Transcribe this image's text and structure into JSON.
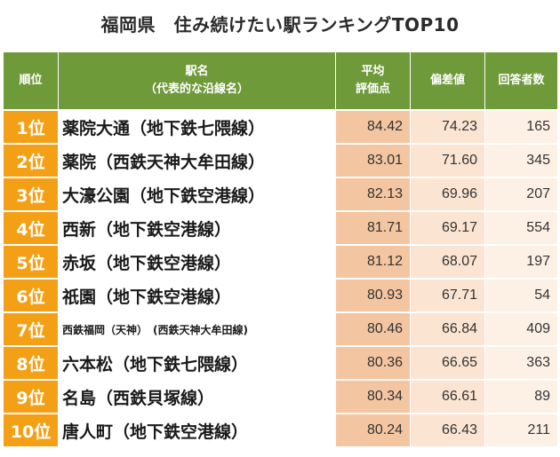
{
  "title": "福岡県　住み続けたい駅ランキングTOP10",
  "headers": {
    "rank": "順位",
    "station_line1": "駅名",
    "station_line2": "（代表的な沿線名）",
    "avg_line1": "平均",
    "avg_line2": "評価点",
    "deviation": "偏差値",
    "respondents": "回答者数"
  },
  "rows": [
    {
      "rank": "1位",
      "station": "薬院大通（地下鉄七隈線）",
      "avg": "84.42",
      "deviation": "74.23",
      "respondents": "165"
    },
    {
      "rank": "2位",
      "station": "薬院（西鉄天神大牟田線）",
      "avg": "83.01",
      "deviation": "71.60",
      "respondents": "345"
    },
    {
      "rank": "3位",
      "station": "大濠公園（地下鉄空港線）",
      "avg": "82.13",
      "deviation": "69.96",
      "respondents": "207"
    },
    {
      "rank": "4位",
      "station": "西新（地下鉄空港線）",
      "avg": "81.71",
      "deviation": "69.17",
      "respondents": "554"
    },
    {
      "rank": "5位",
      "station": "赤坂（地下鉄空港線）",
      "avg": "81.12",
      "deviation": "68.07",
      "respondents": "197"
    },
    {
      "rank": "6位",
      "station": "祇園（地下鉄空港線）",
      "avg": "80.93",
      "deviation": "67.71",
      "respondents": "54"
    },
    {
      "rank": "7位",
      "station": "西鉄福岡（天神）　(西鉄天神大牟田線)",
      "avg": "80.46",
      "deviation": "66.84",
      "respondents": "409"
    },
    {
      "rank": "8位",
      "station": "六本松（地下鉄七隈線）",
      "avg": "80.36",
      "deviation": "66.65",
      "respondents": "363"
    },
    {
      "rank": "9位",
      "station": "名島（西鉄貝塚線）",
      "avg": "80.34",
      "deviation": "66.61",
      "respondents": "89"
    },
    {
      "rank": "10位",
      "station": "唐人町（地下鉄空港線）",
      "avg": "80.24",
      "deviation": "66.43",
      "respondents": "211"
    }
  ],
  "colors": {
    "header_bg": "#6f9a3a",
    "rank_bg": "#f4a017",
    "avg_bg": "#f3c5a0",
    "deviation_bg": "#fbe4d1",
    "respondents_bg": "#fdf1e6"
  }
}
